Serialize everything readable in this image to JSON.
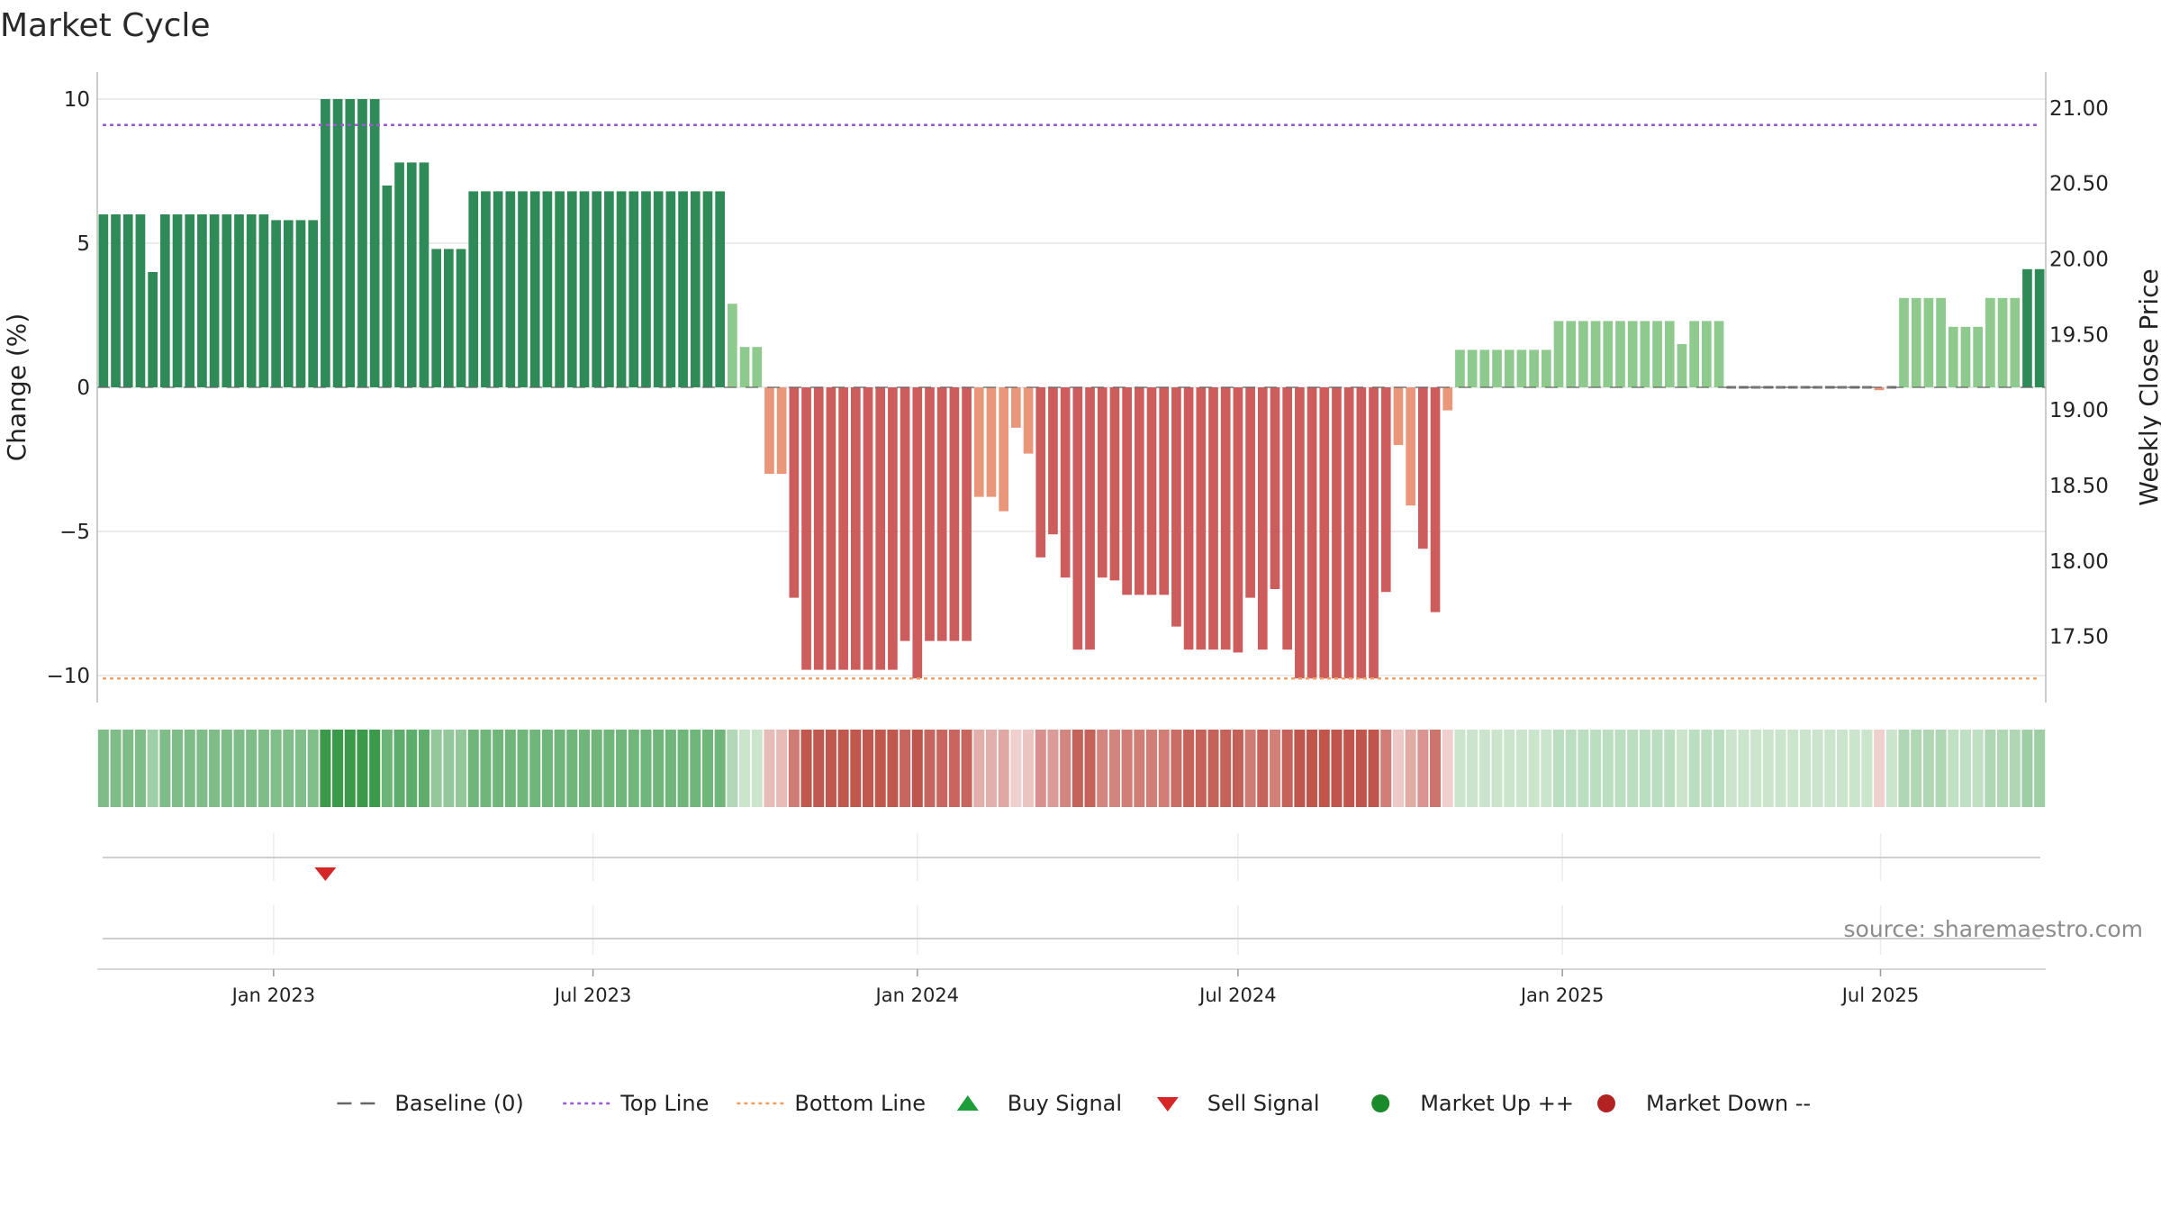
{
  "chart_data": {
    "type": "bar",
    "title": "Market Cycle",
    "ylabel": "Change (%)",
    "y2label": "Weekly Close Price",
    "ylim": [
      -11,
      11
    ],
    "y2lim": [
      17.05,
      21.25
    ],
    "yticks": [
      {
        "value": 10,
        "label": "10"
      },
      {
        "value": 5,
        "label": "5"
      },
      {
        "value": 0,
        "label": "0"
      },
      {
        "value": -5,
        "label": "−5"
      },
      {
        "value": -10,
        "label": "−10"
      }
    ],
    "y2ticks": [
      {
        "value": 21.0,
        "label": "21.00"
      },
      {
        "value": 20.5,
        "label": "20.50"
      },
      {
        "value": 20.0,
        "label": "20.00"
      },
      {
        "value": 19.5,
        "label": "19.50"
      },
      {
        "value": 19.0,
        "label": "19.00"
      },
      {
        "value": 18.5,
        "label": "18.50"
      },
      {
        "value": 18.0,
        "label": "18.00"
      },
      {
        "value": 17.5,
        "label": "17.50"
      }
    ],
    "xticks": [
      {
        "label": "Jan 2023",
        "week": 14.3
      },
      {
        "label": "Jul 2023",
        "week": 40.2
      },
      {
        "label": "Jan 2024",
        "week": 66.5
      },
      {
        "label": "Jul 2024",
        "week": 92.5
      },
      {
        "label": "Jan 2025",
        "week": 118.8
      },
      {
        "label": "Jul 2025",
        "week": 144.6
      }
    ],
    "top_line": 9.1,
    "bottom_line": -10.1,
    "baseline": 0,
    "weekly_change": [
      6,
      6,
      6,
      6,
      4,
      6,
      6,
      6,
      6,
      6,
      6,
      6,
      6,
      6,
      5.8,
      5.8,
      5.8,
      5.8,
      10,
      10,
      10,
      10,
      10,
      7,
      7.8,
      7.8,
      7.8,
      4.8,
      4.8,
      4.8,
      6.8,
      6.8,
      6.8,
      6.8,
      6.8,
      6.8,
      6.8,
      6.8,
      6.8,
      6.8,
      6.8,
      6.8,
      6.8,
      6.8,
      6.8,
      6.8,
      6.8,
      6.8,
      6.8,
      6.8,
      6.8,
      2.9,
      1.4,
      1.4,
      -3,
      -3,
      -7.3,
      -9.8,
      -9.8,
      -9.8,
      -9.8,
      -9.8,
      -9.8,
      -9.8,
      -9.8,
      -8.8,
      -10.1,
      -8.8,
      -8.8,
      -8.8,
      -8.8,
      -3.8,
      -3.8,
      -4.3,
      -1.4,
      -2.3,
      -5.9,
      -5.1,
      -6.6,
      -9.1,
      -9.1,
      -6.6,
      -6.7,
      -7.2,
      -7.2,
      -7.2,
      -7.2,
      -8.3,
      -9.1,
      -9.1,
      -9.1,
      -9.1,
      -9.2,
      -7.3,
      -9.1,
      -7,
      -9.1,
      -10.1,
      -10.1,
      -10.1,
      -10.1,
      -10.1,
      -10.1,
      -10.1,
      -7.1,
      -2,
      -4.1,
      -5.6,
      -7.8,
      -0.8,
      1.3,
      1.3,
      1.3,
      1.3,
      1.3,
      1.3,
      1.3,
      1.3,
      2.3,
      2.3,
      2.3,
      2.3,
      2.3,
      2.3,
      2.3,
      2.3,
      2.3,
      2.3,
      1.5,
      2.3,
      2.3,
      2.3,
      0,
      0,
      0,
      0,
      0,
      0,
      0,
      0,
      0,
      0,
      0,
      0,
      -0.1,
      0,
      3.1,
      3.1,
      3.1,
      3.1,
      2.1,
      2.1,
      2.1,
      3.1,
      3.1,
      3.1,
      4.1,
      4.1
    ],
    "signals": [
      {
        "type": "sell",
        "week": 18.5
      }
    ],
    "legend": [
      {
        "label": "Baseline (0)",
        "marker": "dash",
        "color": "#666666"
      },
      {
        "label": "Top Line",
        "marker": "dotted",
        "color": "#9b59d6"
      },
      {
        "label": "Bottom Line",
        "marker": "dotted",
        "color": "#f0a060"
      },
      {
        "label": "Buy Signal",
        "marker": "triangle-up",
        "color": "#1e9e3a"
      },
      {
        "label": "Sell Signal",
        "marker": "triangle-down",
        "color": "#d62728"
      },
      {
        "label": "Market Up ++",
        "marker": "circle",
        "color": "#1a8a2a"
      },
      {
        "label": "Market Down --",
        "marker": "circle",
        "color": "#b22222"
      }
    ],
    "source": "source: sharemaestro.com",
    "colors": {
      "strong_up": "#2e8b57",
      "weak_up": "#8ec98e",
      "strong_down": "#cd5c5c",
      "weak_down": "#e9967a",
      "top_line": "#9b59d6",
      "bottom_line": "#f0a060",
      "sell": "#d62728",
      "grid": "#e6e6e6"
    }
  }
}
